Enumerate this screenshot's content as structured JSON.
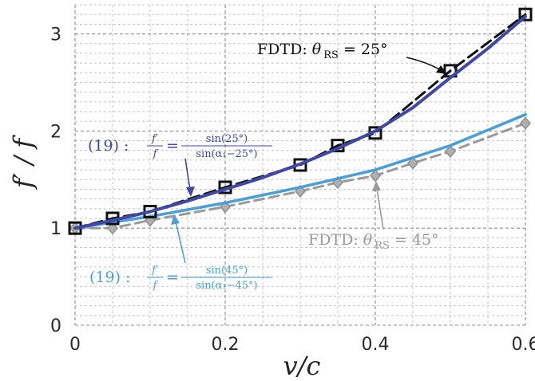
{
  "chart_data": {
    "type": "line",
    "title": "",
    "xlabel": "v/c",
    "ylabel": "f′ / f",
    "xlim": [
      0,
      0.6
    ],
    "ylim": [
      0,
      3.3
    ],
    "xticks": [
      0,
      0.2,
      0.4,
      0.6
    ],
    "xtick_labels": [
      "0",
      "0.2",
      "0.4",
      "0.6"
    ],
    "yticks": [
      0,
      1,
      2,
      3
    ],
    "ytick_labels": [
      "0",
      "1",
      "2",
      "3"
    ],
    "grid": true,
    "grid_minor_x": 0.05,
    "grid_minor_y": 0.1,
    "series": [
      {
        "name": "(19): f′/f = sin(25°)/sin(α₁−25°)",
        "style": "solid",
        "color": "#3f48a5",
        "x": [
          0,
          0.05,
          0.1,
          0.15,
          0.2,
          0.25,
          0.3,
          0.35,
          0.4,
          0.45,
          0.5,
          0.55,
          0.6
        ],
        "y": [
          1.0,
          1.08,
          1.17,
          1.28,
          1.4,
          1.52,
          1.66,
          1.82,
          2.0,
          2.24,
          2.55,
          2.85,
          3.18
        ]
      },
      {
        "name": "FDTD: θ RS = 25°",
        "style": "dashed-square-markers",
        "color": "#111111",
        "x": [
          0,
          0.05,
          0.1,
          0.2,
          0.3,
          0.35,
          0.4,
          0.5,
          0.6
        ],
        "y": [
          1.0,
          1.1,
          1.17,
          1.42,
          1.65,
          1.85,
          1.98,
          2.62,
          3.2
        ]
      },
      {
        "name": "(19): f′/f = sin(45°)/sin(α₁−45°)",
        "style": "solid",
        "color": "#4a9fd8",
        "x": [
          0,
          0.1,
          0.2,
          0.3,
          0.4,
          0.5,
          0.6
        ],
        "y": [
          1.0,
          1.12,
          1.26,
          1.42,
          1.6,
          1.85,
          2.17
        ]
      },
      {
        "name": "FDTD: θ RS = 45°",
        "style": "dashed-diamond-markers",
        "color": "#9a9a9a",
        "x": [
          0,
          0.05,
          0.1,
          0.2,
          0.3,
          0.35,
          0.4,
          0.45,
          0.5,
          0.6
        ],
        "y": [
          1.0,
          1.0,
          1.08,
          1.22,
          1.38,
          1.47,
          1.54,
          1.67,
          1.79,
          2.08
        ]
      }
    ],
    "annotations": {
      "fdtd25": {
        "prefix": "FDTD: ",
        "theta": "θ",
        "sub": "RS",
        "eq": " = 25°",
        "color": "#111111"
      },
      "fdtd45": {
        "prefix": "FDTD: ",
        "theta": "θ",
        "sub": "RS",
        "eq": " = 45°",
        "color": "#9a9a9a"
      },
      "eq25": {
        "lead": "(19) : ",
        "lhs_num": "f′",
        "lhs_den": "f",
        "eqsign": "=",
        "rhs_num": "sin(25°)",
        "rhs_den": "sin(α₁−25°)",
        "color": "#3f48a5"
      },
      "eq45": {
        "lead": "(19) : ",
        "lhs_num": "f′",
        "lhs_den": "f",
        "eqsign": "=",
        "rhs_num": "sin(45°)",
        "rhs_den": "sin(α₁−45°)",
        "color": "#4a9fd8"
      }
    }
  }
}
